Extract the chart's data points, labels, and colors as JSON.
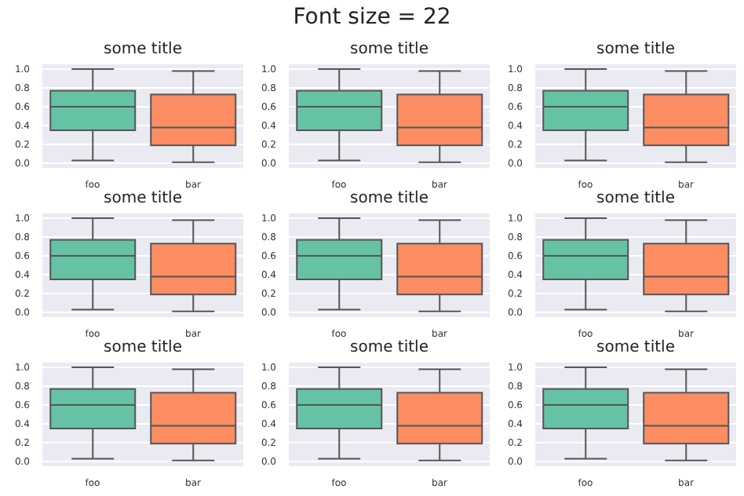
{
  "chart_data": [
    {
      "type": "box",
      "title": "some title",
      "annotations": [
        "Font size = 22"
      ],
      "categories": [
        "foo",
        "bar"
      ],
      "colors": [
        "#66c2a5",
        "#fc8d62"
      ],
      "boxes": [
        {
          "low": 0.03,
          "q1": 0.35,
          "median": 0.6,
          "q3": 0.77,
          "high": 1.0
        },
        {
          "low": 0.01,
          "q1": 0.19,
          "median": 0.38,
          "q3": 0.73,
          "high": 0.98
        }
      ],
      "ylim": [
        -0.05,
        1.05
      ],
      "yticks": [
        {
          "value": 0,
          "label": "0.0"
        },
        {
          "value": 0.2,
          "label": "0.2"
        },
        {
          "value": 0.4,
          "label": "0.4"
        },
        {
          "value": 0.6,
          "label": "0.6"
        },
        {
          "value": 0.8,
          "label": "0.8"
        },
        {
          "value": 1,
          "label": "1.0"
        }
      ],
      "grid": "y"
    },
    {
      "type": "box",
      "title": "some title",
      "categories": [
        "foo",
        "bar"
      ],
      "colors": [
        "#66c2a5",
        "#fc8d62"
      ],
      "boxes": [
        {
          "low": 0.03,
          "q1": 0.35,
          "median": 0.6,
          "q3": 0.77,
          "high": 1.0
        },
        {
          "low": 0.01,
          "q1": 0.19,
          "median": 0.38,
          "q3": 0.73,
          "high": 0.98
        }
      ],
      "ylim": [
        -0.05,
        1.05
      ],
      "yticks": [
        {
          "value": 0,
          "label": "0.0"
        },
        {
          "value": 0.2,
          "label": "0.2"
        },
        {
          "value": 0.4,
          "label": "0.4"
        },
        {
          "value": 0.6,
          "label": "0.6"
        },
        {
          "value": 0.8,
          "label": "0.8"
        },
        {
          "value": 1,
          "label": "1.0"
        }
      ],
      "grid": "y"
    },
    {
      "type": "box",
      "title": "some title",
      "categories": [
        "foo",
        "bar"
      ],
      "colors": [
        "#66c2a5",
        "#fc8d62"
      ],
      "boxes": [
        {
          "low": 0.03,
          "q1": 0.35,
          "median": 0.6,
          "q3": 0.77,
          "high": 1.0
        },
        {
          "low": 0.01,
          "q1": 0.19,
          "median": 0.38,
          "q3": 0.73,
          "high": 0.98
        }
      ],
      "ylim": [
        -0.05,
        1.05
      ],
      "yticks": [
        {
          "value": 0,
          "label": "0.0"
        },
        {
          "value": 0.2,
          "label": "0.2"
        },
        {
          "value": 0.4,
          "label": "0.4"
        },
        {
          "value": 0.6,
          "label": "0.6"
        },
        {
          "value": 0.8,
          "label": "0.8"
        },
        {
          "value": 1,
          "label": "1.0"
        }
      ],
      "grid": "y"
    },
    {
      "type": "box",
      "title": "some title",
      "categories": [
        "foo",
        "bar"
      ],
      "colors": [
        "#66c2a5",
        "#fc8d62"
      ],
      "boxes": [
        {
          "low": 0.03,
          "q1": 0.35,
          "median": 0.6,
          "q3": 0.77,
          "high": 1.0
        },
        {
          "low": 0.01,
          "q1": 0.19,
          "median": 0.38,
          "q3": 0.73,
          "high": 0.98
        }
      ],
      "ylim": [
        -0.05,
        1.05
      ],
      "yticks": [
        {
          "value": 0,
          "label": "0.0"
        },
        {
          "value": 0.2,
          "label": "0.2"
        },
        {
          "value": 0.4,
          "label": "0.4"
        },
        {
          "value": 0.6,
          "label": "0.6"
        },
        {
          "value": 0.8,
          "label": "0.8"
        },
        {
          "value": 1,
          "label": "1.0"
        }
      ],
      "grid": "y"
    },
    {
      "type": "box",
      "title": "some title",
      "categories": [
        "foo",
        "bar"
      ],
      "colors": [
        "#66c2a5",
        "#fc8d62"
      ],
      "boxes": [
        {
          "low": 0.03,
          "q1": 0.35,
          "median": 0.6,
          "q3": 0.77,
          "high": 1.0
        },
        {
          "low": 0.01,
          "q1": 0.19,
          "median": 0.38,
          "q3": 0.73,
          "high": 0.98
        }
      ],
      "ylim": [
        -0.05,
        1.05
      ],
      "yticks": [
        {
          "value": 0,
          "label": "0.0"
        },
        {
          "value": 0.2,
          "label": "0.2"
        },
        {
          "value": 0.4,
          "label": "0.4"
        },
        {
          "value": 0.6,
          "label": "0.6"
        },
        {
          "value": 0.8,
          "label": "0.8"
        },
        {
          "value": 1,
          "label": "1.0"
        }
      ],
      "grid": "y"
    },
    {
      "type": "box",
      "title": "some title",
      "categories": [
        "foo",
        "bar"
      ],
      "colors": [
        "#66c2a5",
        "#fc8d62"
      ],
      "boxes": [
        {
          "low": 0.03,
          "q1": 0.35,
          "median": 0.6,
          "q3": 0.77,
          "high": 1.0
        },
        {
          "low": 0.01,
          "q1": 0.19,
          "median": 0.38,
          "q3": 0.73,
          "high": 0.98
        }
      ],
      "ylim": [
        -0.05,
        1.05
      ],
      "yticks": [
        {
          "value": 0,
          "label": "0.0"
        },
        {
          "value": 0.2,
          "label": "0.2"
        },
        {
          "value": 0.4,
          "label": "0.4"
        },
        {
          "value": 0.6,
          "label": "0.6"
        },
        {
          "value": 0.8,
          "label": "0.8"
        },
        {
          "value": 1,
          "label": "1.0"
        }
      ],
      "grid": "y"
    },
    {
      "type": "box",
      "title": "some title",
      "categories": [
        "foo",
        "bar"
      ],
      "colors": [
        "#66c2a5",
        "#fc8d62"
      ],
      "boxes": [
        {
          "low": 0.03,
          "q1": 0.35,
          "median": 0.6,
          "q3": 0.77,
          "high": 1.0
        },
        {
          "low": 0.01,
          "q1": 0.19,
          "median": 0.38,
          "q3": 0.73,
          "high": 0.98
        }
      ],
      "ylim": [
        -0.05,
        1.05
      ],
      "yticks": [
        {
          "value": 0,
          "label": "0.0"
        },
        {
          "value": 0.2,
          "label": "0.2"
        },
        {
          "value": 0.4,
          "label": "0.4"
        },
        {
          "value": 0.6,
          "label": "0.6"
        },
        {
          "value": 0.8,
          "label": "0.8"
        },
        {
          "value": 1,
          "label": "1.0"
        }
      ],
      "grid": "y"
    },
    {
      "type": "box",
      "title": "some title",
      "categories": [
        "foo",
        "bar"
      ],
      "colors": [
        "#66c2a5",
        "#fc8d62"
      ],
      "boxes": [
        {
          "low": 0.03,
          "q1": 0.35,
          "median": 0.6,
          "q3": 0.77,
          "high": 1.0
        },
        {
          "low": 0.01,
          "q1": 0.19,
          "median": 0.38,
          "q3": 0.73,
          "high": 0.98
        }
      ],
      "ylim": [
        -0.05,
        1.05
      ],
      "yticks": [
        {
          "value": 0,
          "label": "0.0"
        },
        {
          "value": 0.2,
          "label": "0.2"
        },
        {
          "value": 0.4,
          "label": "0.4"
        },
        {
          "value": 0.6,
          "label": "0.6"
        },
        {
          "value": 0.8,
          "label": "0.8"
        },
        {
          "value": 1,
          "label": "1.0"
        }
      ],
      "grid": "y"
    },
    {
      "type": "box",
      "title": "some title",
      "categories": [
        "foo",
        "bar"
      ],
      "colors": [
        "#66c2a5",
        "#fc8d62"
      ],
      "boxes": [
        {
          "low": 0.03,
          "q1": 0.35,
          "median": 0.6,
          "q3": 0.77,
          "high": 1.0
        },
        {
          "low": 0.01,
          "q1": 0.19,
          "median": 0.38,
          "q3": 0.73,
          "high": 0.98
        }
      ],
      "ylim": [
        -0.05,
        1.05
      ],
      "yticks": [
        {
          "value": 0,
          "label": "0.0"
        },
        {
          "value": 0.2,
          "label": "0.2"
        },
        {
          "value": 0.4,
          "label": "0.4"
        },
        {
          "value": 0.6,
          "label": "0.6"
        },
        {
          "value": 0.8,
          "label": "0.8"
        },
        {
          "value": 1,
          "label": "1.0"
        }
      ],
      "grid": "y"
    }
  ]
}
